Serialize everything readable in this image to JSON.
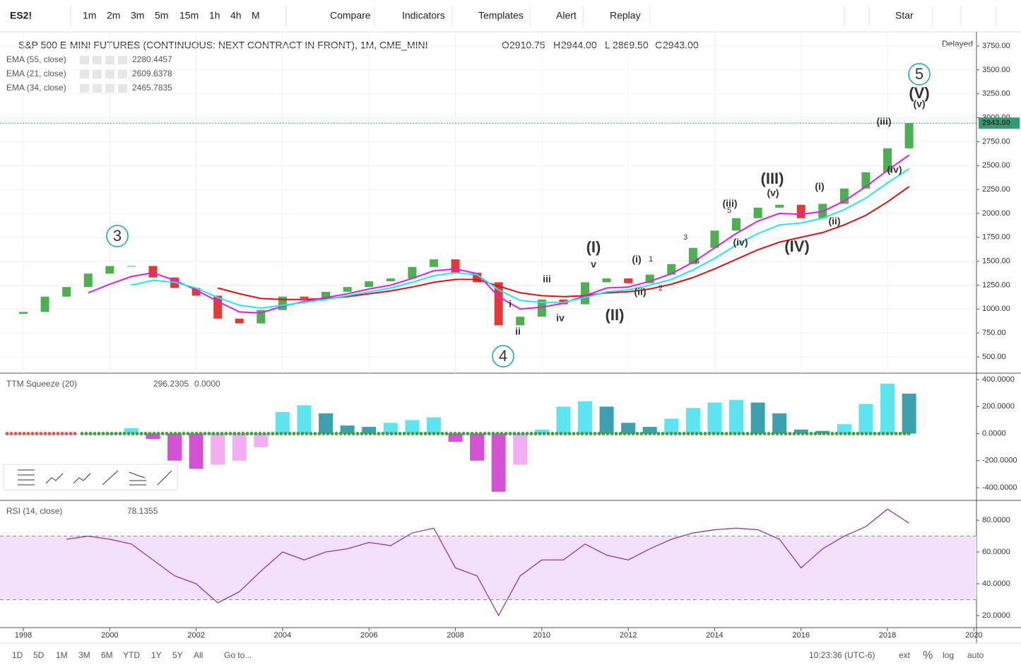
{
  "toolbar": {
    "symbol": "ES2!",
    "intervals": [
      "1m",
      "2m",
      "3m",
      "5m",
      "15m",
      "1h",
      "4h",
      "M"
    ],
    "buttons": [
      "Compare",
      "Indicators",
      "Templates",
      "Alert",
      "Replay",
      "Star"
    ]
  },
  "legend": {
    "title": "S&P 500 E-MINI FUTURES (CONTINUOUS: NEXT CONTRACT IN FRONT), 1M, CME_MINI",
    "ohlc": [
      {
        "name": "O",
        "value": 2910.75,
        "label": "2910.75"
      },
      {
        "name": "H",
        "value": 2944,
        "label": "2944.00"
      },
      {
        "name": "L",
        "value": 2869.5,
        "label": "2869.50"
      },
      {
        "name": "C",
        "value": 2943,
        "label": "2943.00"
      }
    ],
    "status": "Delayed"
  },
  "chart_data": [
    {
      "type": "candlestick",
      "x": [
        1998,
        1998.5,
        1999,
        1999.5,
        2000,
        2000.5,
        2001,
        2001.5,
        2002,
        2002.5,
        2003,
        2003.5,
        2004,
        2004.5,
        2005,
        2005.5,
        2006,
        2006.5,
        2007,
        2007.5,
        2008,
        2008.5,
        2009,
        2009.5,
        2010,
        2010.5,
        2011,
        2011.5,
        2012,
        2012.5,
        2013,
        2013.5,
        2014,
        2014.5,
        2015,
        2015.5,
        2016,
        2016.5,
        2017,
        2017.5,
        2018,
        2018.5
      ],
      "open": [
        950,
        970,
        1130,
        1230,
        1370,
        1450,
        1450,
        1330,
        1220,
        1140,
        900,
        850,
        990,
        1130,
        1110,
        1180,
        1230,
        1290,
        1320,
        1440,
        1520,
        1380,
        1280,
        830,
        920,
        1100,
        1050,
        1280,
        1320,
        1270,
        1360,
        1470,
        1640,
        1820,
        1950,
        2060,
        2090,
        1950,
        2100,
        2260,
        2430,
        2680
      ],
      "close": [
        970,
        1130,
        1230,
        1370,
        1450,
        1450,
        1330,
        1220,
        1140,
        900,
        850,
        990,
        1130,
        1110,
        1180,
        1230,
        1290,
        1320,
        1440,
        1520,
        1380,
        1280,
        830,
        920,
        1100,
        1050,
        1280,
        1320,
        1270,
        1360,
        1470,
        1640,
        1820,
        1950,
        2060,
        2090,
        1950,
        2100,
        2260,
        2430,
        2680,
        2943
      ],
      "up_color": "#4caf50",
      "down_color": "#e53935",
      "series": [
        {
          "name": "EMA (55, close)",
          "color": "#e01010",
          "values": [
            null,
            null,
            null,
            null,
            null,
            null,
            null,
            null,
            null,
            1220,
            1160,
            1110,
            1100,
            1100,
            1110,
            1130,
            1160,
            1190,
            1230,
            1280,
            1310,
            1310,
            1240,
            1170,
            1140,
            1130,
            1140,
            1170,
            1180,
            1210,
            1260,
            1330,
            1420,
            1520,
            1620,
            1700,
            1750,
            1800,
            1880,
            1980,
            2120,
            2280.4457
          ]
        },
        {
          "name": "EMA (21, close)",
          "color": "#e020e0",
          "values": [
            null,
            null,
            null,
            1170,
            1260,
            1340,
            1380,
            1300,
            1200,
            1080,
            970,
            960,
            1030,
            1080,
            1120,
            1160,
            1210,
            1250,
            1320,
            1400,
            1420,
            1370,
            1130,
            1000,
            1020,
            1060,
            1140,
            1220,
            1230,
            1290,
            1370,
            1490,
            1640,
            1790,
            1920,
            2000,
            1990,
            2020,
            2130,
            2280,
            2450,
            2609.6378
          ]
        },
        {
          "name": "EMA (34, close)",
          "color": "#20e8f0",
          "values": [
            null,
            null,
            null,
            null,
            null,
            1250,
            1300,
            1280,
            1220,
            1120,
            1040,
            1010,
            1040,
            1070,
            1100,
            1140,
            1180,
            1220,
            1280,
            1350,
            1380,
            1360,
            1200,
            1090,
            1070,
            1070,
            1120,
            1180,
            1200,
            1250,
            1310,
            1410,
            1530,
            1670,
            1790,
            1880,
            1900,
            1950,
            2040,
            2160,
            2320,
            2465.7835
          ]
        }
      ],
      "xlim": [
        1997.46,
        2020.06
      ],
      "xticks": [
        1998,
        2000,
        2002,
        2004,
        2006,
        2008,
        2010,
        2012,
        2014,
        2016,
        2018,
        2020
      ],
      "ylim": [
        330,
        3898
      ],
      "yticks": [
        {
          "value": 500,
          "label": "500.00"
        },
        {
          "value": 750,
          "label": "750.00"
        },
        {
          "value": 1000,
          "label": "1000.00"
        },
        {
          "value": 1250,
          "label": "1250.00"
        },
        {
          "value": 1500,
          "label": "1500.00"
        },
        {
          "value": 1750,
          "label": "1750.00"
        },
        {
          "value": 2000,
          "label": "2000.00"
        },
        {
          "value": 2250,
          "label": "2250.00"
        },
        {
          "value": 2500,
          "label": "2500.00"
        },
        {
          "value": 2750,
          "label": "2750.00"
        },
        {
          "value": 3000,
          "label": "3000.00"
        },
        {
          "value": 3250,
          "label": "3250.00"
        },
        {
          "value": 3500,
          "label": "3500.00"
        },
        {
          "value": 3750,
          "label": "3750.00"
        }
      ],
      "grid": true,
      "annotations": [
        "3",
        "4",
        "5",
        "(V)",
        "(v)",
        "(iii)",
        "(iv)",
        "(i)",
        "(ii)",
        "(III)",
        "(v)",
        "(IV)",
        "(iii)",
        "5",
        "(iv)",
        "3",
        "4",
        "(i)",
        "1",
        "(ii)",
        "2",
        "(I)",
        "v",
        "(II)",
        "iii",
        "iv",
        "i",
        "ii"
      ]
    },
    {
      "type": "histogram",
      "name": "TTM Squeeze (20)",
      "extra_label": "0.0000",
      "values": [
        0,
        0,
        0,
        0,
        0,
        40,
        -40,
        -200,
        -260,
        -230,
        -200,
        -100,
        160,
        210,
        150,
        60,
        50,
        80,
        100,
        120,
        -60,
        -200,
        -430,
        -230,
        30,
        200,
        240,
        200,
        80,
        50,
        110,
        190,
        230,
        250,
        230,
        150,
        30,
        20,
        70,
        220,
        370,
        296.2305
      ],
      "ylim": [
        -494,
        437
      ],
      "yticks": [
        {
          "value": -400,
          "label": "-400.0000"
        },
        {
          "value": -200,
          "label": "-200.0000"
        },
        {
          "value": 0,
          "label": "0.0000"
        },
        {
          "value": 200,
          "label": "200.0000"
        },
        {
          "value": 400,
          "label": "400.0000"
        }
      ]
    },
    {
      "type": "line",
      "name": "RSI (14, close)",
      "color": "#8e3aa0",
      "values": [
        null,
        null,
        68,
        70,
        68,
        65,
        55,
        45,
        40,
        28,
        35,
        48,
        60,
        55,
        60,
        62,
        66,
        64,
        72,
        75,
        50,
        45,
        20,
        45,
        55,
        55,
        65,
        58,
        55,
        62,
        68,
        72,
        74,
        75,
        74,
        68,
        50,
        62,
        70,
        76,
        87,
        78.1355
      ],
      "bands": [
        30,
        70
      ],
      "ylim": [
        12.4,
        91.6
      ],
      "yticks": [
        {
          "value": 20,
          "label": "20.0000"
        },
        {
          "value": 40,
          "label": "40.0000"
        },
        {
          "value": 60,
          "label": "60.0000"
        },
        {
          "value": 80,
          "label": "80.0000"
        }
      ]
    }
  ],
  "bottom_bar": {
    "ranges": [
      "1D",
      "5D",
      "1M",
      "3M",
      "6M",
      "YTD",
      "1Y",
      "5Y",
      "All"
    ],
    "goto": "Go to...",
    "clock": "10:23:36 (UTC-6)",
    "options": [
      "ext",
      "%",
      "log",
      "auto"
    ]
  }
}
